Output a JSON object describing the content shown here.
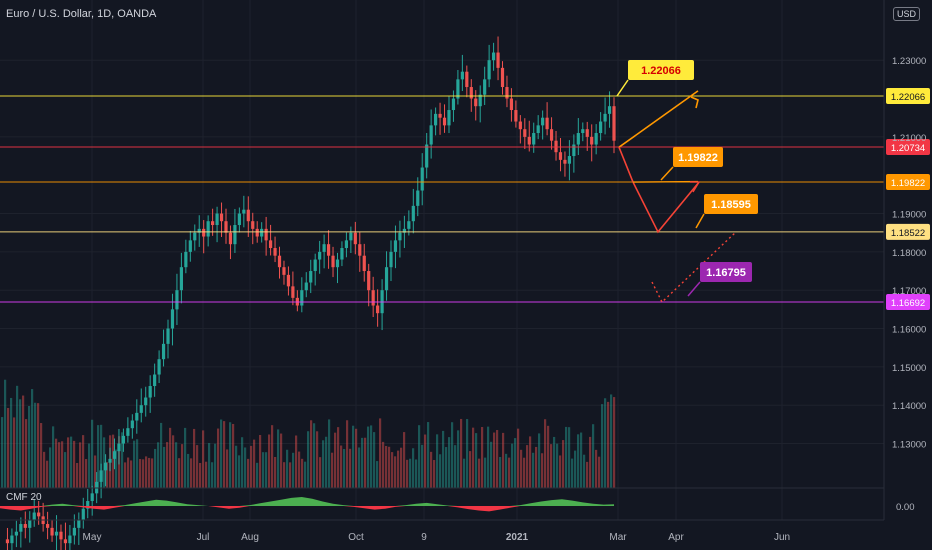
{
  "header": {
    "title": "Euro / U.S. Dollar, 1D, OANDA",
    "currency": "USD",
    "indicator_label": "CMF 20"
  },
  "colors": {
    "background": "#131722",
    "up": "#26a69a",
    "down": "#ef5350",
    "grid": "#1e222d",
    "axis_text": "#b2b5be",
    "yellow": "#ffeb3b",
    "orange": "#ff9800",
    "magenta": "#e040fb",
    "purple": "#9c27b0",
    "red_line": "#f44336",
    "cmf_pos": "#4caf50",
    "cmf_neg": "#f23645"
  },
  "chart_data": {
    "type": "candlestick",
    "title": "Euro / U.S. Dollar, 1D, OANDA",
    "ylabel": "USD",
    "ylim": [
      1.12,
      1.24
    ],
    "x_tick_labels": [
      "May",
      "Jul",
      "Aug",
      "Oct",
      "9",
      "2021",
      "Mar",
      "Apr",
      "Jun"
    ],
    "y_tick_labels": [
      "1.13000",
      "1.14000",
      "1.15000",
      "1.16000",
      "1.17000",
      "1.18000",
      "1.19000",
      "1.21000",
      "1.23000"
    ],
    "price_levels": [
      {
        "price": 1.22066,
        "label": "1.22066",
        "color": "#ffeb3b"
      },
      {
        "price": 1.20734,
        "label": "1.20734",
        "color": "#f23645"
      },
      {
        "price": 1.19822,
        "label": "1.19822",
        "color": "#ff9800"
      },
      {
        "price": 1.18522,
        "label": "1.18522",
        "color": "#ffe082"
      },
      {
        "price": 1.16692,
        "label": "1.16692",
        "color": "#e040fb"
      }
    ],
    "callouts": [
      {
        "label": "1.22066",
        "bg": "#ffeb3b",
        "fg": "#d50000"
      },
      {
        "label": "1.19822",
        "bg": "#ff9800",
        "fg": "#ffffff"
      },
      {
        "label": "1.18595",
        "bg": "#ff9800",
        "fg": "#ffffff"
      },
      {
        "label": "1.16795",
        "bg": "#9c27b0",
        "fg": "#ffffff"
      }
    ],
    "close_path": [
      1.105,
      1.104,
      1.106,
      1.107,
      1.109,
      1.108,
      1.11,
      1.112,
      1.111,
      1.109,
      1.108,
      1.106,
      1.107,
      1.105,
      1.104,
      1.106,
      1.108,
      1.11,
      1.113,
      1.115,
      1.117,
      1.12,
      1.123,
      1.125,
      1.126,
      1.128,
      1.13,
      1.132,
      1.134,
      1.136,
      1.138,
      1.14,
      1.142,
      1.145,
      1.148,
      1.152,
      1.156,
      1.16,
      1.165,
      1.17,
      1.176,
      1.18,
      1.183,
      1.185,
      1.186,
      1.184,
      1.188,
      1.187,
      1.19,
      1.188,
      1.185,
      1.182,
      1.187,
      1.19,
      1.191,
      1.188,
      1.186,
      1.184,
      1.186,
      1.183,
      1.181,
      1.179,
      1.176,
      1.174,
      1.171,
      1.168,
      1.166,
      1.17,
      1.172,
      1.175,
      1.178,
      1.18,
      1.182,
      1.179,
      1.176,
      1.178,
      1.181,
      1.183,
      1.185,
      1.182,
      1.179,
      1.175,
      1.17,
      1.166,
      1.164,
      1.17,
      1.176,
      1.18,
      1.183,
      1.185,
      1.186,
      1.188,
      1.192,
      1.196,
      1.202,
      1.208,
      1.213,
      1.216,
      1.215,
      1.213,
      1.217,
      1.22,
      1.225,
      1.227,
      1.223,
      1.22,
      1.218,
      1.221,
      1.225,
      1.23,
      1.232,
      1.228,
      1.223,
      1.22,
      1.217,
      1.214,
      1.212,
      1.21,
      1.208,
      1.211,
      1.213,
      1.215,
      1.212,
      1.209,
      1.206,
      1.204,
      1.203,
      1.205,
      1.208,
      1.211,
      1.212,
      1.21,
      1.208,
      1.211,
      1.214,
      1.216,
      1.218,
      1.209
    ],
    "cmf_path": [
      -0.05,
      -0.08,
      -0.1,
      -0.06,
      -0.02,
      0.03,
      0.05,
      0.02,
      -0.03,
      -0.06,
      -0.08,
      -0.04,
      0.02,
      0.06,
      0.1,
      0.14,
      0.12,
      0.08,
      0.04,
      0.02,
      0.0,
      -0.03,
      -0.06,
      -0.04,
      0.02,
      0.06,
      0.1,
      0.14,
      0.18,
      0.2,
      0.16,
      0.1,
      0.05,
      0.02,
      -0.02,
      -0.05,
      -0.08,
      -0.06,
      -0.02,
      0.02,
      0.05,
      0.07,
      0.04,
      0.01,
      -0.03,
      -0.07,
      -0.1,
      -0.12,
      -0.08,
      -0.04,
      0.02,
      0.06,
      0.1,
      0.13,
      0.15,
      0.12,
      0.08,
      0.05,
      0.03,
      0.04
    ],
    "forecast": {
      "up_branch": [
        1.2073,
        1.222
      ],
      "down_path": [
        1.2073,
        1.1982,
        1.1852,
        1.1982
      ],
      "dotted": [
        1.1669,
        1.1852
      ]
    }
  }
}
